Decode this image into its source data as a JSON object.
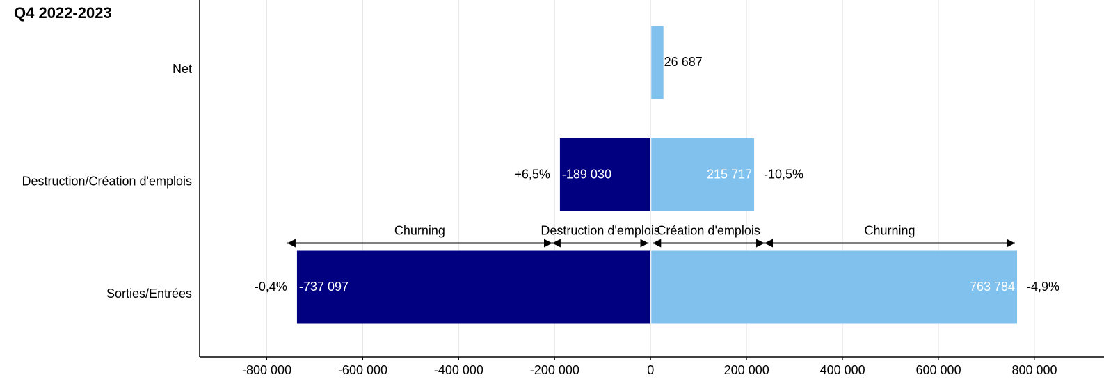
{
  "chart_data": {
    "type": "diverging_bar",
    "title": "Q4 2022-2023",
    "categories": [
      "Net",
      "Destruction/Création d'emplois",
      "Sorties/Entrées"
    ],
    "series": [
      {
        "color": "#000080",
        "values": [
          null,
          -189030,
          -737097
        ],
        "value_labels": [
          null,
          "-189 030",
          "-737 097"
        ],
        "change_labels": [
          null,
          "+6,5%",
          "-0,4%"
        ]
      },
      {
        "color": "#80c1ee",
        "values": [
          26687,
          215717,
          763784
        ],
        "value_labels": [
          "26 687",
          "215 717",
          "763 784"
        ],
        "change_labels": [
          null,
          "-10,5%",
          "-4,9%"
        ]
      }
    ],
    "annotations": [
      "Churning",
      "Destruction d'emplois",
      "Création d'emplois",
      "Churning"
    ],
    "xlim": [
      -940000,
      945000
    ],
    "xticks": [
      {
        "value": -800000,
        "label": "-800 000"
      },
      {
        "value": -600000,
        "label": "-600 000"
      },
      {
        "value": -400000,
        "label": "-400 000"
      },
      {
        "value": -200000,
        "label": "-200 000"
      },
      0,
      {
        "value": 200000,
        "label": "200 000"
      },
      {
        "value": 400000,
        "label": "400 000"
      },
      {
        "value": 600000,
        "label": "600 000"
      },
      {
        "value": 800000,
        "label": "800 000"
      }
    ],
    "grid": true
  }
}
